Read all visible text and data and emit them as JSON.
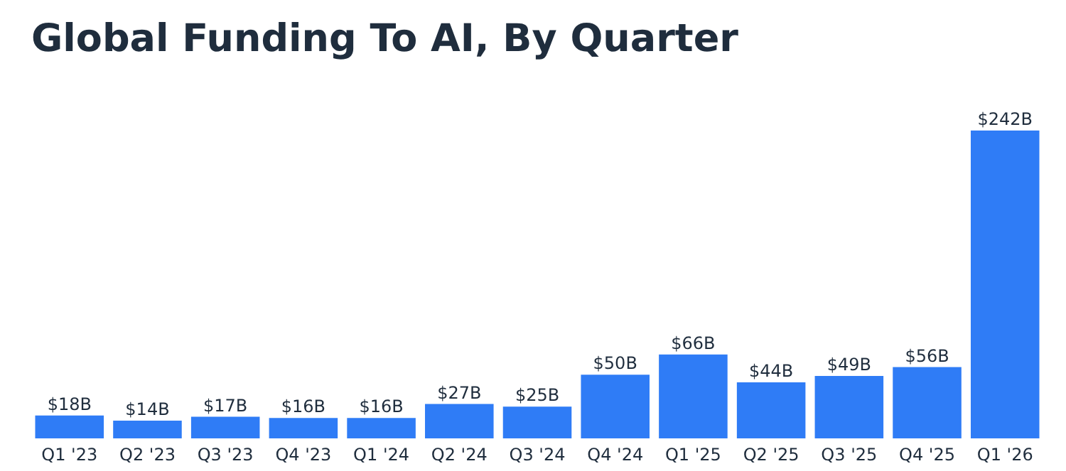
{
  "chart_data": {
    "type": "bar",
    "title": "Global Funding To AI, By Quarter",
    "categories": [
      "Q1 '23",
      "Q2 '23",
      "Q3 '23",
      "Q4 '23",
      "Q1 '24",
      "Q2 '24",
      "Q3 '24",
      "Q4 '24",
      "Q1 '25",
      "Q2 '25",
      "Q3 '25",
      "Q4 '25",
      "Q1 '26"
    ],
    "values": [
      18,
      14,
      17,
      16,
      16,
      27,
      25,
      50,
      66,
      44,
      49,
      56,
      242
    ],
    "value_labels": [
      "$18B",
      "$14B",
      "$17B",
      "$16B",
      "$16B",
      "$27B",
      "$25B",
      "$50B",
      "$66B",
      "$44B",
      "$49B",
      "$56B",
      "$242B"
    ],
    "color": "#2f7cf6",
    "tick_labels": "x"
  }
}
